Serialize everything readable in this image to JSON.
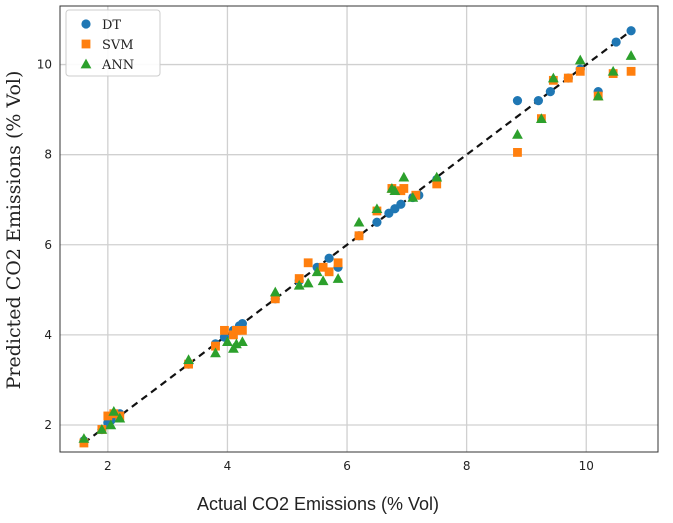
{
  "chart_data": {
    "type": "scatter",
    "title": "",
    "xlabel": "Actual CO2 Emissions (% Vol)",
    "ylabel": "Predicted CO2 Emissions (% Vol)",
    "xlim": [
      1.2,
      11.2
    ],
    "ylim": [
      1.4,
      11.3
    ],
    "xticks": [
      2,
      4,
      6,
      8,
      10
    ],
    "yticks": [
      2,
      4,
      6,
      8,
      10
    ],
    "grid": true,
    "legend_position": "top-left",
    "reference_line": {
      "style": "dashed",
      "color": "#111111",
      "from": [
        1.6,
        1.6
      ],
      "to": [
        10.8,
        10.8
      ]
    },
    "series": [
      {
        "name": "DT",
        "marker": "circle",
        "color": "#1f77b4",
        "points": [
          [
            1.6,
            1.65
          ],
          [
            1.9,
            1.9
          ],
          [
            2.0,
            2.05
          ],
          [
            2.05,
            2.1
          ],
          [
            2.1,
            2.2
          ],
          [
            2.2,
            2.25
          ],
          [
            3.35,
            3.35
          ],
          [
            3.8,
            3.8
          ],
          [
            3.95,
            3.95
          ],
          [
            4.1,
            4.1
          ],
          [
            4.2,
            4.2
          ],
          [
            4.25,
            4.25
          ],
          [
            4.8,
            4.8
          ],
          [
            5.2,
            5.2
          ],
          [
            5.5,
            5.5
          ],
          [
            5.7,
            5.7
          ],
          [
            5.85,
            5.5
          ],
          [
            6.2,
            6.2
          ],
          [
            6.5,
            6.5
          ],
          [
            6.7,
            6.7
          ],
          [
            6.8,
            6.8
          ],
          [
            6.9,
            6.9
          ],
          [
            7.1,
            7.05
          ],
          [
            7.2,
            7.1
          ],
          [
            7.5,
            7.45
          ],
          [
            8.85,
            9.2
          ],
          [
            9.2,
            9.2
          ],
          [
            9.4,
            9.4
          ],
          [
            9.7,
            9.7
          ],
          [
            9.9,
            9.9
          ],
          [
            10.2,
            9.4
          ],
          [
            10.5,
            10.5
          ],
          [
            10.75,
            10.75
          ]
        ]
      },
      {
        "name": "SVM",
        "marker": "square",
        "color": "#ff7f0e",
        "points": [
          [
            1.6,
            1.6
          ],
          [
            1.9,
            1.9
          ],
          [
            2.0,
            2.2
          ],
          [
            2.1,
            2.25
          ],
          [
            2.2,
            2.2
          ],
          [
            3.35,
            3.35
          ],
          [
            3.8,
            3.75
          ],
          [
            3.95,
            4.1
          ],
          [
            4.1,
            4.0
          ],
          [
            4.15,
            4.1
          ],
          [
            4.25,
            4.1
          ],
          [
            4.8,
            4.8
          ],
          [
            5.2,
            5.25
          ],
          [
            5.35,
            5.6
          ],
          [
            5.6,
            5.5
          ],
          [
            5.7,
            5.4
          ],
          [
            5.85,
            5.6
          ],
          [
            6.2,
            6.2
          ],
          [
            6.5,
            6.75
          ],
          [
            6.75,
            7.25
          ],
          [
            6.9,
            7.2
          ],
          [
            6.95,
            7.25
          ],
          [
            7.15,
            7.1
          ],
          [
            7.5,
            7.35
          ],
          [
            8.85,
            8.05
          ],
          [
            9.25,
            8.8
          ],
          [
            9.45,
            9.65
          ],
          [
            9.7,
            9.7
          ],
          [
            9.9,
            9.85
          ],
          [
            10.2,
            9.3
          ],
          [
            10.45,
            9.8
          ],
          [
            10.75,
            9.85
          ]
        ]
      },
      {
        "name": "ANN",
        "marker": "triangle",
        "color": "#2ca02c",
        "points": [
          [
            1.6,
            1.7
          ],
          [
            1.9,
            1.9
          ],
          [
            2.05,
            2.0
          ],
          [
            2.1,
            2.3
          ],
          [
            2.2,
            2.15
          ],
          [
            3.35,
            3.45
          ],
          [
            3.8,
            3.6
          ],
          [
            4.0,
            3.85
          ],
          [
            4.1,
            3.7
          ],
          [
            4.15,
            3.8
          ],
          [
            4.25,
            3.85
          ],
          [
            4.8,
            4.95
          ],
          [
            5.2,
            5.1
          ],
          [
            5.35,
            5.15
          ],
          [
            5.5,
            5.4
          ],
          [
            5.6,
            5.2
          ],
          [
            5.85,
            5.25
          ],
          [
            6.2,
            6.5
          ],
          [
            6.5,
            6.8
          ],
          [
            6.75,
            7.25
          ],
          [
            6.8,
            7.2
          ],
          [
            6.95,
            7.5
          ],
          [
            7.1,
            7.05
          ],
          [
            7.5,
            7.5
          ],
          [
            8.85,
            8.45
          ],
          [
            9.25,
            8.8
          ],
          [
            9.45,
            9.7
          ],
          [
            9.9,
            10.1
          ],
          [
            10.2,
            9.3
          ],
          [
            10.45,
            9.85
          ],
          [
            10.75,
            10.2
          ]
        ]
      }
    ]
  }
}
